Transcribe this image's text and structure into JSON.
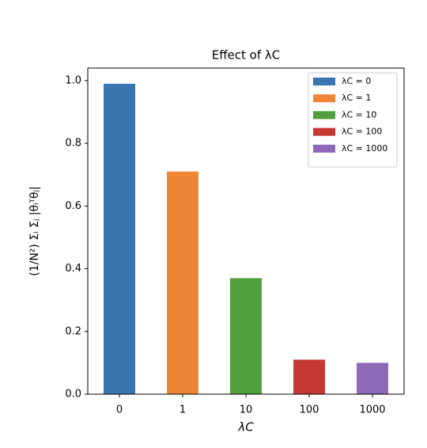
{
  "chart_data": {
    "type": "bar",
    "title": "Effect of λC",
    "xlabel": "λC",
    "ylabel": "(1/N²) Σᵢ Σⱼ |θᵢᵀθⱼ|",
    "categories": [
      "0",
      "1",
      "10",
      "100",
      "1000"
    ],
    "values": [
      0.99,
      0.71,
      0.37,
      0.11,
      0.1
    ],
    "colors": [
      "#3a75af",
      "#ef8636",
      "#519e3e",
      "#c53932",
      "#8d69b8"
    ],
    "legend": [
      "λC = 0",
      "λC = 1",
      "λC = 10",
      "λC = 100",
      "λC = 1000"
    ],
    "legend_position": "upper right",
    "ylim": [
      0,
      1.04
    ],
    "yticks": [
      {
        "value": 0,
        "label": "0.0"
      },
      {
        "value": 0.2,
        "label": "0.2"
      },
      {
        "value": 0.4,
        "label": "0.4"
      },
      {
        "value": 0.6,
        "label": "0.6"
      },
      {
        "value": 0.8,
        "label": "0.8"
      },
      {
        "value": 1,
        "label": "1.0"
      }
    ],
    "grid": false
  }
}
